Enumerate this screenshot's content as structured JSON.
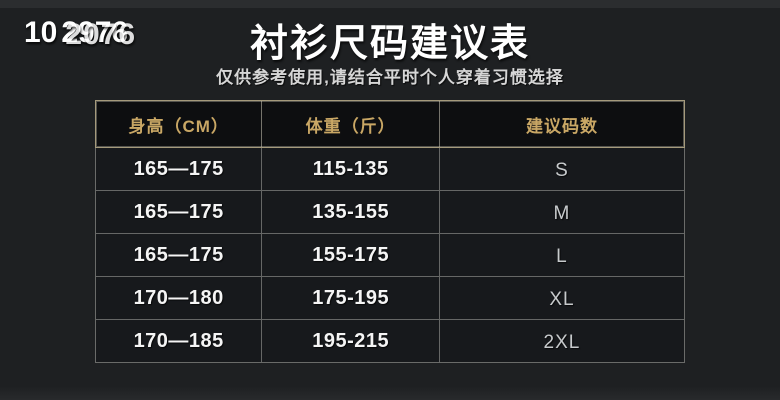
{
  "colors": {
    "page_bg": "#1e2022",
    "header_gold": "#c9a765",
    "border_tan": "#a59a7c",
    "grid_line": "#c8c8c0",
    "value_white": "#f5f5f5",
    "size_gray": "#c7cacc"
  },
  "watermark": {
    "prefix": "10",
    "ghost_layers": [
      "2976",
      "2076"
    ]
  },
  "header": {
    "title": "衬衫尺码建议表",
    "subtitle": "仅供参考使用,请结合平时个人穿着习惯选择"
  },
  "chart_data": {
    "type": "table",
    "title": "衬衫尺码建议表",
    "subtitle": "仅供参考使用,请结合平时个人穿着习惯选择",
    "columns": [
      "身高（CM）",
      "体重（斤）",
      "建议码数"
    ],
    "rows": [
      [
        "165—175",
        "115-135",
        "S"
      ],
      [
        "165—175",
        "135-155",
        "M"
      ],
      [
        "165—175",
        "155-175",
        "L"
      ],
      [
        "170—180",
        "175-195",
        "XL"
      ],
      [
        "170—185",
        "195-215",
        "2XL"
      ]
    ]
  }
}
